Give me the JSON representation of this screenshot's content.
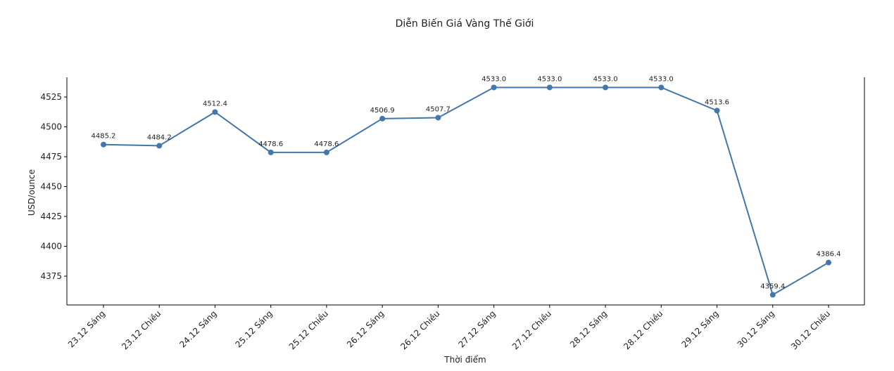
{
  "chart_data": {
    "type": "line",
    "title": "Diễn Biến Giá Vàng Thế Giới",
    "xlabel": "Thời điểm",
    "ylabel": "USD/ounce",
    "categories": [
      "23.12 Sáng",
      "23.12 Chiều",
      "24.12 Sáng",
      "25.12 Sáng",
      "25.12 Chiều",
      "26.12 Sáng",
      "26.12 Chiều",
      "27.12 Sáng",
      "27.12 Chiều",
      "28.12 Sáng",
      "28.12 Chiều",
      "29.12 Sáng",
      "30.12 Sáng",
      "30.12 Chiều"
    ],
    "values": [
      4485.2,
      4484.2,
      4512.4,
      4478.6,
      4478.6,
      4506.9,
      4507.7,
      4533.0,
      4533.0,
      4533.0,
      4533.0,
      4513.6,
      4359.4,
      4386.4
    ],
    "data_labels": [
      "4485.2",
      "4484.2",
      "4512.4",
      "4478.6",
      "4478.6",
      "4506.9",
      "4507.7",
      "4533.0",
      "4533.0",
      "4533.0",
      "4533.0",
      "4513.6",
      "4359.4",
      "4386.4"
    ],
    "yticks": [
      4375,
      4400,
      4425,
      4450,
      4475,
      4500,
      4525
    ],
    "ylim": [
      4350.9,
      4541.5
    ],
    "grid": false,
    "colors": {
      "line": "#4177ac"
    }
  }
}
